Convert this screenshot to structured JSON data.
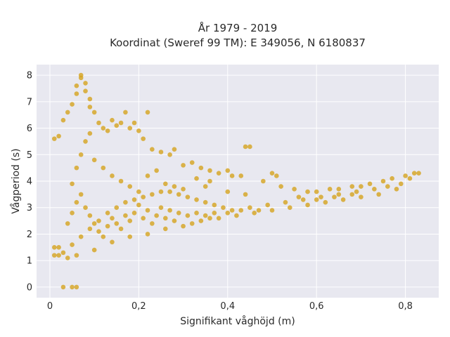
{
  "chart_data": {
    "type": "scatter",
    "title": "År 1979 - 2019",
    "subtitle": "Koordinat (Sweref 99 TM): E 349056, N 6180837",
    "xlabel": "Signifikant våghöjd (m)",
    "ylabel": "Vågperiod (s)",
    "xlim": [
      -0.03,
      0.875
    ],
    "ylim": [
      -0.4,
      8.4
    ],
    "xticks": [
      0,
      0.2,
      0.4,
      0.6,
      0.8
    ],
    "xtick_labels": [
      "0",
      "0,2",
      "0,4",
      "0,6",
      "0,8"
    ],
    "yticks": [
      0,
      1,
      2,
      3,
      4,
      5,
      6,
      7,
      8
    ],
    "ytick_labels": [
      "0",
      "1",
      "2",
      "3",
      "4",
      "5",
      "6",
      "7",
      "8"
    ],
    "grid": true,
    "colors": {
      "marker": "#d4a21e",
      "plot_bg": "#e8e8f0",
      "grid": "#ffffff",
      "text": "#2a2a2a"
    },
    "series": [
      {
        "points": [
          [
            0.03,
            0
          ],
          [
            0.05,
            0
          ],
          [
            0.06,
            0
          ],
          [
            0.01,
            1.2
          ],
          [
            0.01,
            1.5
          ],
          [
            0.02,
            1.5
          ],
          [
            0.02,
            1.2
          ],
          [
            0.01,
            5.6
          ],
          [
            0.02,
            5.7
          ],
          [
            0.03,
            6.3
          ],
          [
            0.04,
            6.6
          ],
          [
            0.05,
            6.9
          ],
          [
            0.06,
            7.3
          ],
          [
            0.06,
            7.6
          ],
          [
            0.07,
            8.0
          ],
          [
            0.07,
            7.9
          ],
          [
            0.08,
            7.7
          ],
          [
            0.08,
            7.4
          ],
          [
            0.09,
            7.1
          ],
          [
            0.09,
            6.8
          ],
          [
            0.1,
            6.6
          ],
          [
            0.11,
            6.2
          ],
          [
            0.12,
            6.0
          ],
          [
            0.13,
            5.9
          ],
          [
            0.14,
            6.3
          ],
          [
            0.15,
            6.1
          ],
          [
            0.16,
            6.2
          ],
          [
            0.17,
            6.6
          ],
          [
            0.18,
            6.0
          ],
          [
            0.19,
            6.2
          ],
          [
            0.2,
            5.9
          ],
          [
            0.22,
            6.6
          ],
          [
            0.21,
            5.6
          ],
          [
            0.23,
            5.2
          ],
          [
            0.25,
            5.1
          ],
          [
            0.27,
            5.0
          ],
          [
            0.28,
            5.2
          ],
          [
            0.3,
            4.6
          ],
          [
            0.32,
            4.7
          ],
          [
            0.34,
            4.5
          ],
          [
            0.36,
            4.4
          ],
          [
            0.38,
            4.3
          ],
          [
            0.4,
            4.4
          ],
          [
            0.41,
            4.2
          ],
          [
            0.44,
            5.3
          ],
          [
            0.45,
            5.3
          ],
          [
            0.5,
            4.3
          ],
          [
            0.51,
            4.2
          ],
          [
            0.43,
            4.2
          ],
          [
            0.48,
            4.0
          ],
          [
            0.52,
            3.8
          ],
          [
            0.55,
            3.7
          ],
          [
            0.58,
            3.6
          ],
          [
            0.6,
            3.6
          ],
          [
            0.63,
            3.7
          ],
          [
            0.65,
            3.7
          ],
          [
            0.68,
            3.8
          ],
          [
            0.7,
            3.8
          ],
          [
            0.72,
            3.9
          ],
          [
            0.75,
            4.0
          ],
          [
            0.77,
            4.1
          ],
          [
            0.8,
            4.2
          ],
          [
            0.82,
            4.3
          ],
          [
            0.83,
            4.3
          ],
          [
            0.78,
            3.7
          ],
          [
            0.74,
            3.5
          ],
          [
            0.7,
            3.4
          ],
          [
            0.66,
            3.3
          ],
          [
            0.62,
            3.2
          ],
          [
            0.58,
            3.1
          ],
          [
            0.54,
            3.0
          ],
          [
            0.5,
            2.9
          ],
          [
            0.46,
            2.8
          ],
          [
            0.42,
            2.7
          ],
          [
            0.38,
            2.6
          ],
          [
            0.34,
            2.5
          ],
          [
            0.3,
            2.3
          ],
          [
            0.26,
            2.2
          ],
          [
            0.22,
            2.0
          ],
          [
            0.18,
            1.9
          ],
          [
            0.14,
            1.7
          ],
          [
            0.1,
            1.4
          ],
          [
            0.06,
            1.2
          ],
          [
            0.04,
            1.1
          ],
          [
            0.03,
            1.3
          ],
          [
            0.05,
            1.6
          ],
          [
            0.07,
            1.9
          ],
          [
            0.09,
            2.2
          ],
          [
            0.11,
            2.5
          ],
          [
            0.13,
            2.8
          ],
          [
            0.15,
            3.0
          ],
          [
            0.17,
            3.2
          ],
          [
            0.19,
            3.3
          ],
          [
            0.21,
            3.4
          ],
          [
            0.23,
            3.5
          ],
          [
            0.25,
            3.6
          ],
          [
            0.27,
            3.6
          ],
          [
            0.29,
            3.5
          ],
          [
            0.31,
            3.4
          ],
          [
            0.33,
            3.3
          ],
          [
            0.35,
            3.2
          ],
          [
            0.37,
            3.1
          ],
          [
            0.39,
            3.0
          ],
          [
            0.41,
            2.9
          ],
          [
            0.45,
            3.0
          ],
          [
            0.49,
            3.1
          ],
          [
            0.53,
            3.2
          ],
          [
            0.57,
            3.3
          ],
          [
            0.61,
            3.4
          ],
          [
            0.65,
            3.5
          ],
          [
            0.69,
            3.6
          ],
          [
            0.73,
            3.7
          ],
          [
            0.05,
            3.9
          ],
          [
            0.06,
            4.5
          ],
          [
            0.07,
            5.0
          ],
          [
            0.08,
            5.5
          ],
          [
            0.09,
            5.8
          ],
          [
            0.1,
            4.8
          ],
          [
            0.12,
            4.5
          ],
          [
            0.14,
            4.2
          ],
          [
            0.16,
            4.0
          ],
          [
            0.18,
            3.8
          ],
          [
            0.2,
            3.6
          ],
          [
            0.22,
            4.2
          ],
          [
            0.24,
            4.4
          ],
          [
            0.26,
            3.9
          ],
          [
            0.28,
            3.8
          ],
          [
            0.3,
            3.7
          ],
          [
            0.04,
            2.4
          ],
          [
            0.05,
            2.8
          ],
          [
            0.06,
            3.2
          ],
          [
            0.07,
            3.5
          ],
          [
            0.08,
            3.0
          ],
          [
            0.09,
            2.7
          ],
          [
            0.1,
            2.4
          ],
          [
            0.11,
            2.1
          ],
          [
            0.12,
            1.9
          ],
          [
            0.13,
            2.3
          ],
          [
            0.14,
            2.6
          ],
          [
            0.15,
            2.4
          ],
          [
            0.16,
            2.2
          ],
          [
            0.17,
            2.7
          ],
          [
            0.18,
            2.5
          ],
          [
            0.19,
            2.8
          ],
          [
            0.2,
            3.1
          ],
          [
            0.21,
            2.6
          ],
          [
            0.22,
            2.9
          ],
          [
            0.23,
            2.4
          ],
          [
            0.24,
            2.7
          ],
          [
            0.25,
            3.0
          ],
          [
            0.26,
            2.6
          ],
          [
            0.27,
            2.9
          ],
          [
            0.28,
            2.5
          ],
          [
            0.29,
            2.8
          ],
          [
            0.31,
            2.7
          ],
          [
            0.33,
            2.8
          ],
          [
            0.35,
            2.7
          ],
          [
            0.37,
            2.8
          ],
          [
            0.4,
            2.8
          ],
          [
            0.43,
            2.9
          ],
          [
            0.47,
            2.9
          ],
          [
            0.35,
            3.8
          ],
          [
            0.36,
            4.0
          ],
          [
            0.33,
            4.1
          ],
          [
            0.4,
            3.6
          ],
          [
            0.44,
            3.5
          ],
          [
            0.32,
            2.4
          ],
          [
            0.36,
            2.6
          ],
          [
            0.56,
            3.4
          ],
          [
            0.6,
            3.3
          ],
          [
            0.64,
            3.4
          ],
          [
            0.68,
            3.5
          ],
          [
            0.76,
            3.8
          ],
          [
            0.79,
            3.9
          ],
          [
            0.81,
            4.1
          ]
        ]
      }
    ]
  }
}
